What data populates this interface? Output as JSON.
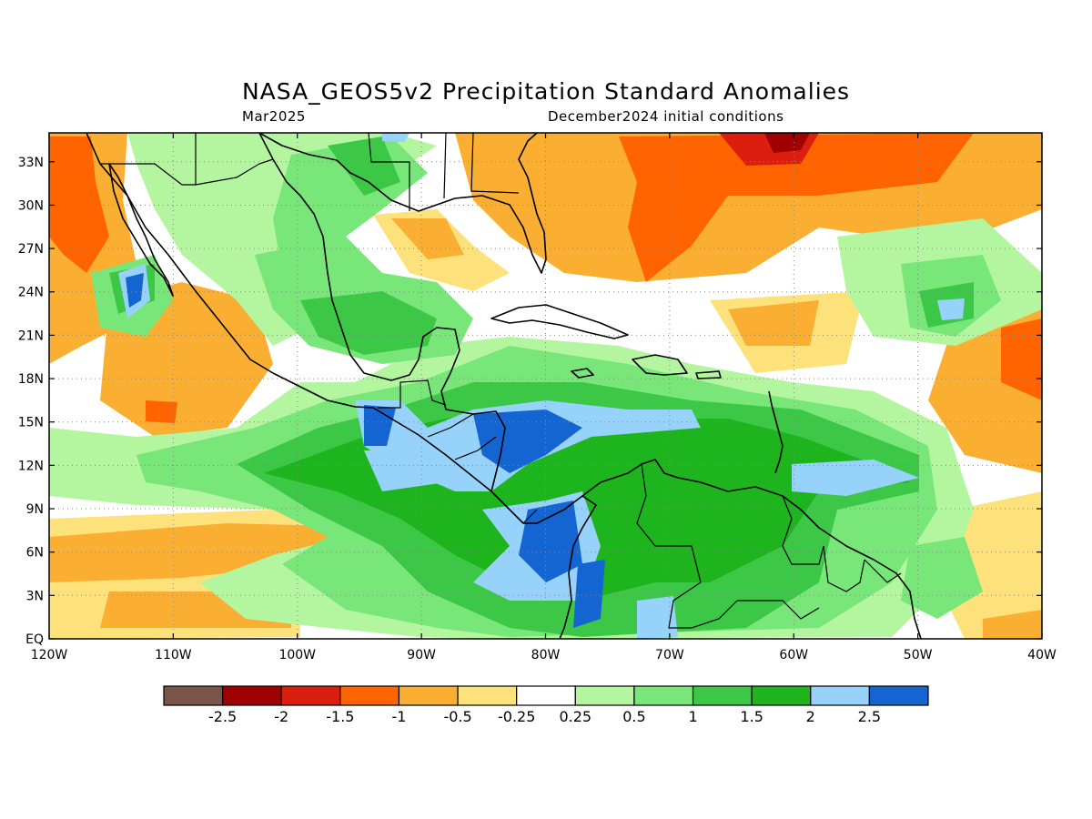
{
  "title": "NASA_GEOS5v2 Precipitation Standard Anomalies",
  "valid_month": "Mar2025",
  "init_label": "December2024 initial conditions",
  "map": {
    "lon_range": [
      -120,
      -40
    ],
    "lat_range": [
      0,
      35
    ],
    "x_ticks": [
      "120W",
      "110W",
      "100W",
      "90W",
      "80W",
      "70W",
      "60W",
      "50W",
      "40W"
    ],
    "y_ticks": [
      "EQ",
      "3N",
      "6N",
      "9N",
      "12N",
      "15N",
      "18N",
      "21N",
      "24N",
      "27N",
      "30N",
      "33N"
    ],
    "grid": "dotted"
  },
  "colorbar": {
    "colors": [
      "#7a5349",
      "#a00000",
      "#dc1e0e",
      "#ff6400",
      "#faaf32",
      "#fde17a",
      "#ffffff",
      "#b4f5a0",
      "#78e678",
      "#3cc846",
      "#1eb41e",
      "#96d2fa",
      "#1464d2"
    ],
    "labels": [
      "-2.5",
      "-2",
      "-1.5",
      "-1",
      "-0.5",
      "-0.25",
      "0.25",
      "0.5",
      "1",
      "1.5",
      "2",
      "2.5"
    ]
  }
}
